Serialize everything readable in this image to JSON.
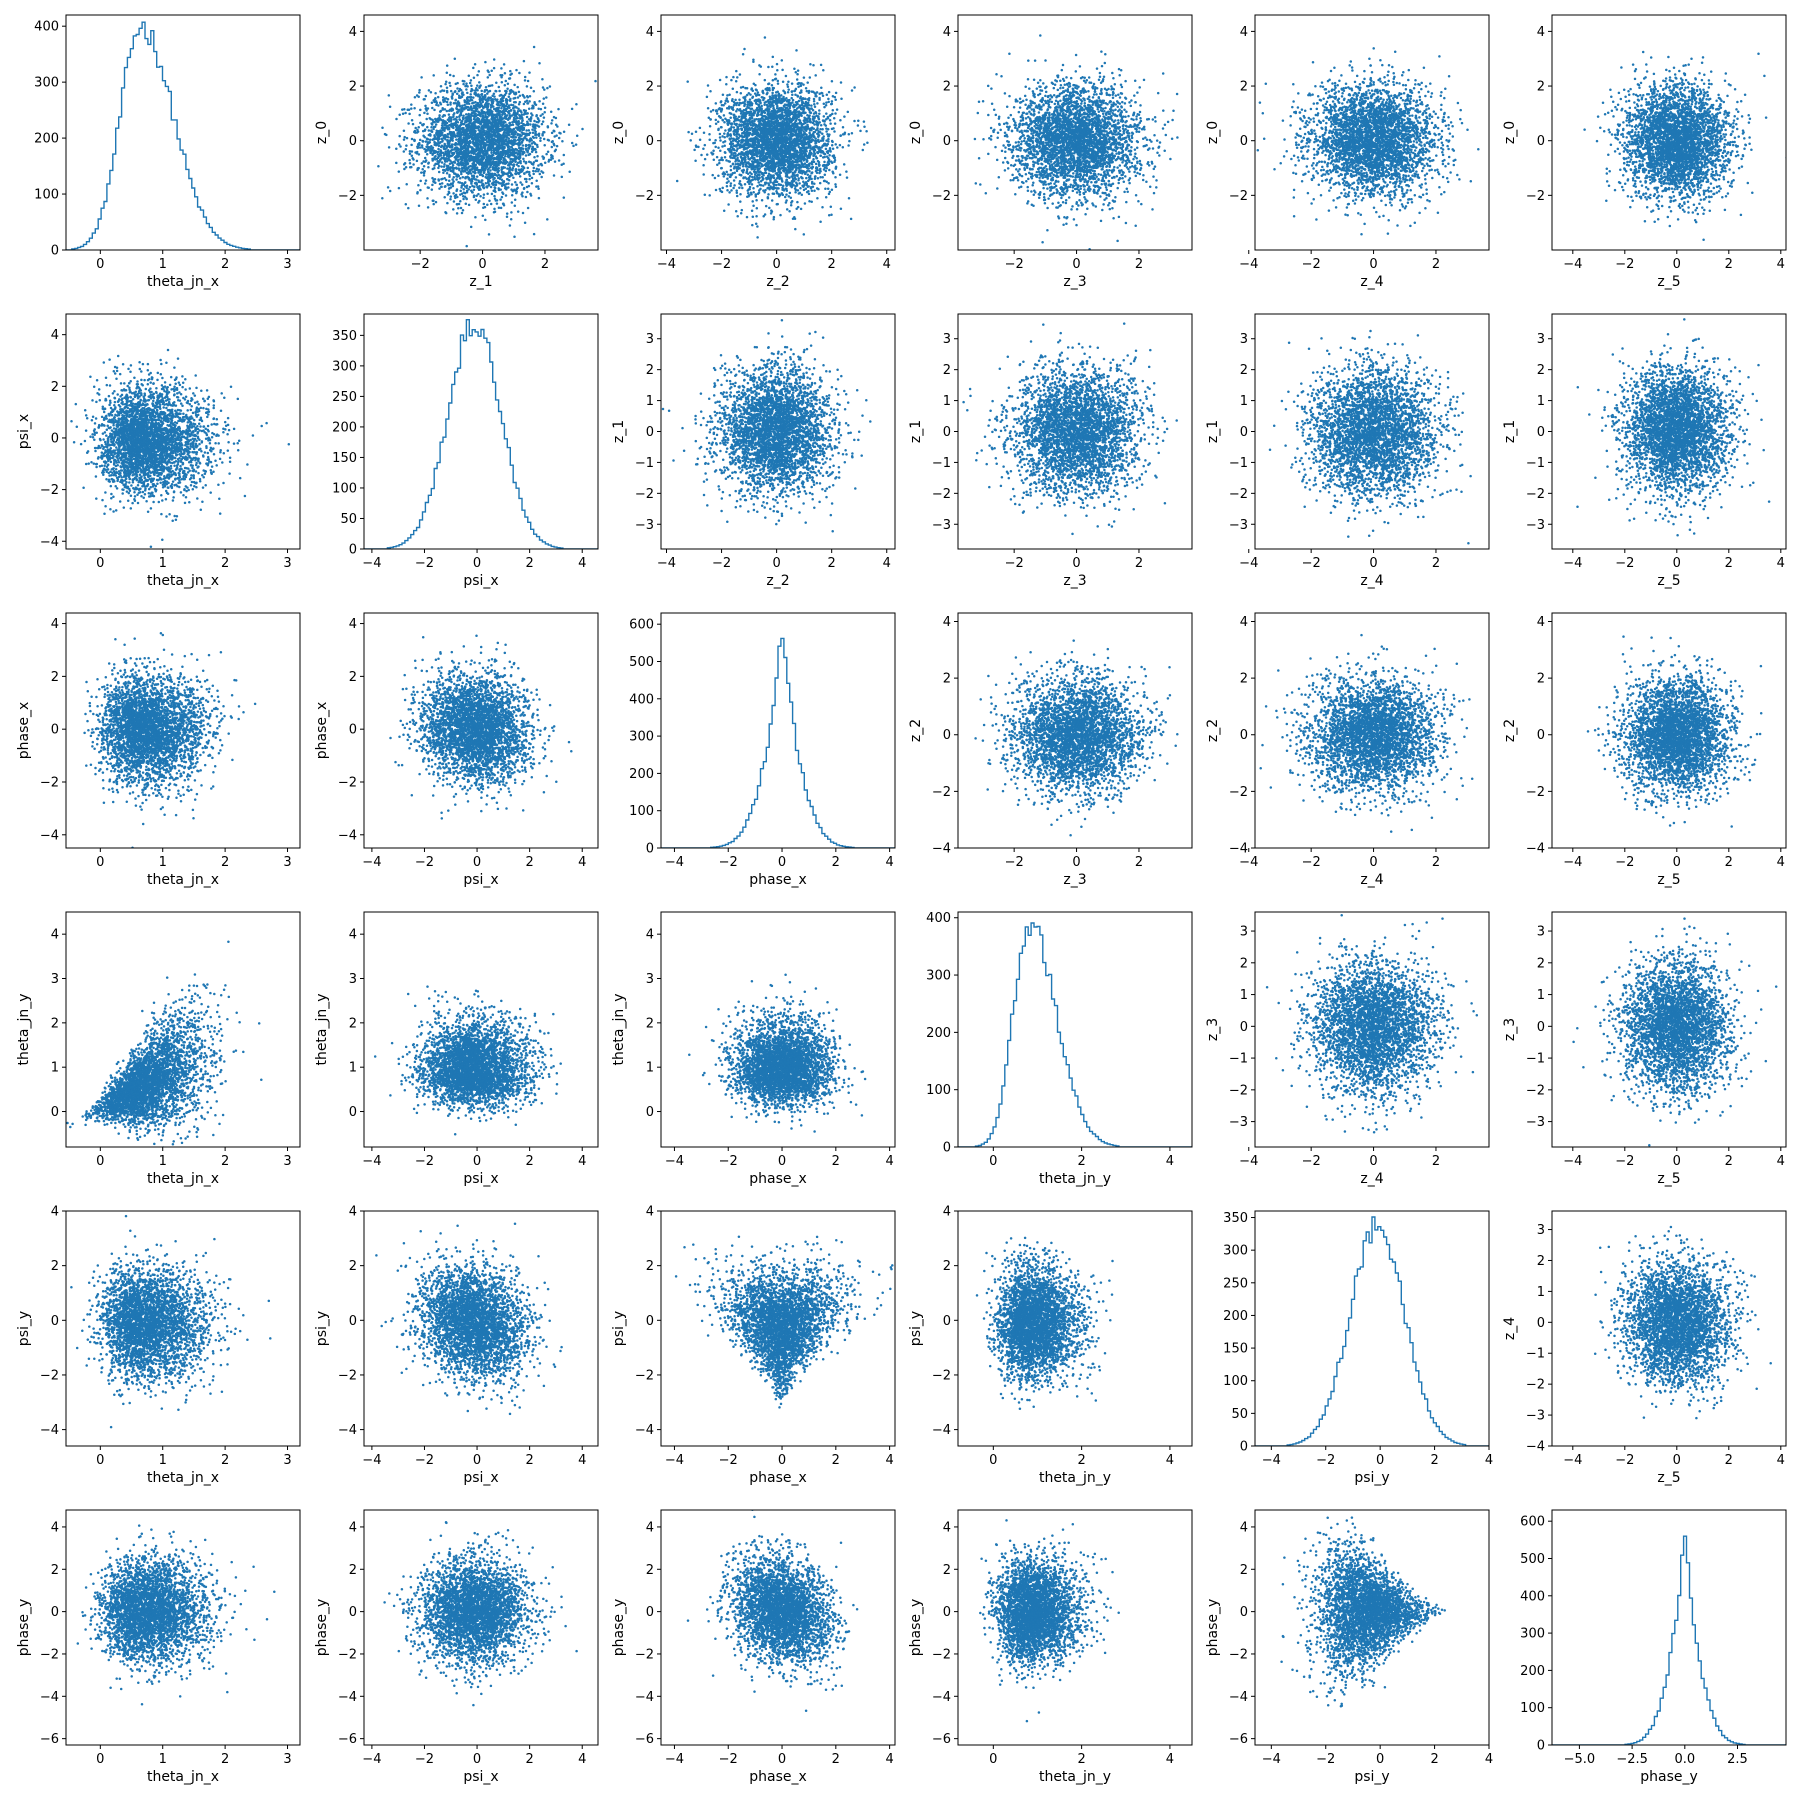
{
  "figure": {
    "background": "#ffffff",
    "series_color": "#1f77b4",
    "grid": false,
    "layout": "6x6 corner plot: histograms on the diagonal, scatter plots off-diagonal"
  },
  "chart_data": [
    {
      "type": "histogram",
      "row": 0,
      "col": 0,
      "xlabel": "theta_jn_x",
      "ylabel": "",
      "xlim": [
        -0.55,
        3.2
      ],
      "ylim": [
        0,
        420
      ],
      "xticks": [
        0,
        1,
        2,
        3
      ],
      "yticks": [
        0,
        100,
        200,
        300,
        400
      ],
      "dist": {
        "kind": "skew",
        "mode": 0.65,
        "sl": 0.33,
        "sr": 0.52,
        "peak": 400
      }
    },
    {
      "type": "scatter",
      "row": 0,
      "col": 1,
      "xlabel": "z_1",
      "ylabel": "z_0",
      "xlim": [
        -3.8,
        3.7
      ],
      "ylim": [
        -4.0,
        4.6
      ],
      "xticks": [
        -2,
        0,
        2
      ],
      "yticks": [
        -2,
        0,
        2,
        4
      ],
      "cloud": {
        "shape": "gauss",
        "cx": 0,
        "cy": 0,
        "sx": 1,
        "sy": 1,
        "r": 0
      }
    },
    {
      "type": "scatter",
      "row": 0,
      "col": 2,
      "xlabel": "z_2",
      "ylabel": "z_0",
      "xlim": [
        -4.2,
        4.3
      ],
      "ylim": [
        -4.0,
        4.6
      ],
      "xticks": [
        -4,
        -2,
        0,
        2,
        4
      ],
      "yticks": [
        -2,
        0,
        2,
        4
      ],
      "cloud": {
        "shape": "gauss",
        "cx": 0,
        "cy": 0,
        "sx": 1,
        "sy": 1,
        "r": 0
      }
    },
    {
      "type": "scatter",
      "row": 0,
      "col": 3,
      "xlabel": "z_3",
      "ylabel": "z_0",
      "xlim": [
        -3.8,
        3.7
      ],
      "ylim": [
        -4.0,
        4.6
      ],
      "xticks": [
        -2,
        0,
        2
      ],
      "yticks": [
        -2,
        0,
        2,
        4
      ],
      "cloud": {
        "shape": "gauss",
        "cx": 0,
        "cy": 0,
        "sx": 1,
        "sy": 1,
        "r": 0
      }
    },
    {
      "type": "scatter",
      "row": 0,
      "col": 4,
      "xlabel": "z_4",
      "ylabel": "z_0",
      "xlim": [
        -3.8,
        3.7
      ],
      "ylim": [
        -4.0,
        4.6
      ],
      "xticks": [
        -4,
        -2,
        0,
        2
      ],
      "yticks": [
        -2,
        0,
        2,
        4
      ],
      "cloud": {
        "shape": "gauss",
        "cx": 0,
        "cy": 0,
        "sx": 1,
        "sy": 1,
        "r": 0
      }
    },
    {
      "type": "scatter",
      "row": 0,
      "col": 5,
      "xlabel": "z_5",
      "ylabel": "z_0",
      "xlim": [
        -4.8,
        4.2
      ],
      "ylim": [
        -4.0,
        4.6
      ],
      "xticks": [
        -4,
        -2,
        0,
        2,
        4
      ],
      "yticks": [
        -2,
        0,
        2,
        4
      ],
      "cloud": {
        "shape": "gauss",
        "cx": 0,
        "cy": 0,
        "sx": 1,
        "sy": 1,
        "r": 0
      }
    },
    {
      "type": "scatter",
      "row": 1,
      "col": 0,
      "xlabel": "theta_jn_x",
      "ylabel": "psi_x",
      "xlim": [
        -0.55,
        3.2
      ],
      "ylim": [
        -4.3,
        4.8
      ],
      "xticks": [
        0,
        1,
        2,
        3
      ],
      "yticks": [
        -4,
        -2,
        0,
        2,
        4
      ],
      "cloud": {
        "shape": "skewx",
        "cx": 0.65,
        "cy": -0.1,
        "sx": 0.45,
        "sy": 1,
        "r": 0
      }
    },
    {
      "type": "histogram",
      "row": 1,
      "col": 1,
      "xlabel": "psi_x",
      "ylabel": "",
      "xlim": [
        -4.3,
        4.6
      ],
      "ylim": [
        0,
        385
      ],
      "xticks": [
        -4,
        -2,
        0,
        2,
        4
      ],
      "yticks": [
        0,
        50,
        100,
        150,
        200,
        250,
        300,
        350
      ],
      "dist": {
        "kind": "normal",
        "mode": -0.1,
        "sl": 1,
        "sr": 1,
        "peak": 370
      }
    },
    {
      "type": "scatter",
      "row": 1,
      "col": 2,
      "xlabel": "z_2",
      "ylabel": "z_1",
      "xlim": [
        -4.2,
        4.3
      ],
      "ylim": [
        -3.8,
        3.8
      ],
      "xticks": [
        -4,
        -2,
        0,
        2,
        4
      ],
      "yticks": [
        -3,
        -2,
        -1,
        0,
        1,
        2,
        3
      ],
      "cloud": {
        "shape": "gauss",
        "cx": 0,
        "cy": 0,
        "sx": 1,
        "sy": 1,
        "r": 0
      }
    },
    {
      "type": "scatter",
      "row": 1,
      "col": 3,
      "xlabel": "z_3",
      "ylabel": "z_1",
      "xlim": [
        -3.8,
        3.7
      ],
      "ylim": [
        -3.8,
        3.8
      ],
      "xticks": [
        -2,
        0,
        2
      ],
      "yticks": [
        -3,
        -2,
        -1,
        0,
        1,
        2,
        3
      ],
      "cloud": {
        "shape": "gauss",
        "cx": 0,
        "cy": 0,
        "sx": 1,
        "sy": 1,
        "r": 0
      }
    },
    {
      "type": "scatter",
      "row": 1,
      "col": 4,
      "xlabel": "z_4",
      "ylabel": "z_1",
      "xlim": [
        -3.8,
        3.7
      ],
      "ylim": [
        -3.8,
        3.8
      ],
      "xticks": [
        -4,
        -2,
        0,
        2
      ],
      "yticks": [
        -3,
        -2,
        -1,
        0,
        1,
        2,
        3
      ],
      "cloud": {
        "shape": "gauss",
        "cx": 0,
        "cy": 0,
        "sx": 1,
        "sy": 1,
        "r": 0
      }
    },
    {
      "type": "scatter",
      "row": 1,
      "col": 5,
      "xlabel": "z_5",
      "ylabel": "z_1",
      "xlim": [
        -4.8,
        4.2
      ],
      "ylim": [
        -3.8,
        3.8
      ],
      "xticks": [
        -4,
        -2,
        0,
        2,
        4
      ],
      "yticks": [
        -3,
        -2,
        -1,
        0,
        1,
        2,
        3
      ],
      "cloud": {
        "shape": "gauss",
        "cx": 0,
        "cy": 0,
        "sx": 1,
        "sy": 1,
        "r": 0
      }
    },
    {
      "type": "scatter",
      "row": 2,
      "col": 0,
      "xlabel": "theta_jn_x",
      "ylabel": "phase_x",
      "xlim": [
        -0.55,
        3.2
      ],
      "ylim": [
        -4.5,
        4.4
      ],
      "xticks": [
        0,
        1,
        2,
        3
      ],
      "yticks": [
        -4,
        -2,
        0,
        2,
        4
      ],
      "cloud": {
        "shape": "skewx",
        "cx": 0.65,
        "cy": 0,
        "sx": 0.45,
        "sy": 1,
        "r": 0
      }
    },
    {
      "type": "scatter",
      "row": 2,
      "col": 1,
      "xlabel": "psi_x",
      "ylabel": "phase_x",
      "xlim": [
        -4.3,
        4.6
      ],
      "ylim": [
        -4.5,
        4.4
      ],
      "xticks": [
        -4,
        -2,
        0,
        2,
        4
      ],
      "yticks": [
        -4,
        -2,
        0,
        2,
        4
      ],
      "cloud": {
        "shape": "gauss",
        "cx": -0.1,
        "cy": 0,
        "sx": 1,
        "sy": 1,
        "r": -0.1
      }
    },
    {
      "type": "histogram",
      "row": 2,
      "col": 2,
      "xlabel": "phase_x",
      "ylabel": "",
      "xlim": [
        -4.5,
        4.2
      ],
      "ylim": [
        0,
        630
      ],
      "xticks": [
        -4,
        -2,
        0,
        2,
        4
      ],
      "yticks": [
        0,
        100,
        200,
        300,
        400,
        500,
        600
      ],
      "dist": {
        "kind": "laplace",
        "mode": 0,
        "sl": 0.7,
        "sr": 0.7,
        "peak": 600
      }
    },
    {
      "type": "scatter",
      "row": 2,
      "col": 3,
      "xlabel": "z_3",
      "ylabel": "z_2",
      "xlim": [
        -3.8,
        3.7
      ],
      "ylim": [
        -4.0,
        4.3
      ],
      "xticks": [
        -2,
        0,
        2
      ],
      "yticks": [
        -4,
        -2,
        0,
        2,
        4
      ],
      "cloud": {
        "shape": "gauss",
        "cx": 0,
        "cy": 0,
        "sx": 1,
        "sy": 1,
        "r": 0
      }
    },
    {
      "type": "scatter",
      "row": 2,
      "col": 4,
      "xlabel": "z_4",
      "ylabel": "z_2",
      "xlim": [
        -3.8,
        3.7
      ],
      "ylim": [
        -4.0,
        4.3
      ],
      "xticks": [
        -4,
        -2,
        0,
        2
      ],
      "yticks": [
        -4,
        -2,
        0,
        2,
        4
      ],
      "cloud": {
        "shape": "gauss",
        "cx": 0,
        "cy": 0,
        "sx": 1,
        "sy": 1,
        "r": 0
      }
    },
    {
      "type": "scatter",
      "row": 2,
      "col": 5,
      "xlabel": "z_5",
      "ylabel": "z_2",
      "xlim": [
        -4.8,
        4.2
      ],
      "ylim": [
        -4.0,
        4.3
      ],
      "xticks": [
        -4,
        -2,
        0,
        2,
        4
      ],
      "yticks": [
        -4,
        -2,
        0,
        2,
        4
      ],
      "cloud": {
        "shape": "gauss",
        "cx": 0,
        "cy": 0,
        "sx": 1,
        "sy": 1,
        "r": 0
      }
    },
    {
      "type": "scatter",
      "row": 3,
      "col": 0,
      "xlabel": "theta_jn_x",
      "ylabel": "theta_jn_y",
      "xlim": [
        -0.55,
        3.2
      ],
      "ylim": [
        -0.8,
        4.5
      ],
      "xticks": [
        0,
        1,
        2,
        3
      ],
      "yticks": [
        0,
        1,
        2,
        3,
        4
      ],
      "cloud": {
        "shape": "cone",
        "cx": 0.65,
        "cy": 0.85,
        "sx": 0.45,
        "sy": 0.5,
        "r": 0.7
      }
    },
    {
      "type": "scatter",
      "row": 3,
      "col": 1,
      "xlabel": "psi_x",
      "ylabel": "theta_jn_y",
      "xlim": [
        -4.3,
        4.6
      ],
      "ylim": [
        -0.8,
        4.5
      ],
      "xticks": [
        -4,
        -2,
        0,
        2,
        4
      ],
      "yticks": [
        0,
        1,
        2,
        3,
        4
      ],
      "cloud": {
        "shape": "skewy",
        "cx": -0.1,
        "cy": 0.85,
        "sx": 1,
        "sy": 0.5,
        "r": 0
      }
    },
    {
      "type": "scatter",
      "row": 3,
      "col": 2,
      "xlabel": "phase_x",
      "ylabel": "theta_jn_y",
      "xlim": [
        -4.5,
        4.2
      ],
      "ylim": [
        -0.8,
        4.5
      ],
      "xticks": [
        -4,
        -2,
        0,
        2,
        4
      ],
      "yticks": [
        0,
        1,
        2,
        3,
        4
      ],
      "cloud": {
        "shape": "skewy",
        "cx": 0,
        "cy": 0.85,
        "sx": 0.9,
        "sy": 0.5,
        "r": 0
      }
    },
    {
      "type": "histogram",
      "row": 3,
      "col": 3,
      "xlabel": "theta_jn_y",
      "ylabel": "",
      "xlim": [
        -0.8,
        4.5
      ],
      "ylim": [
        0,
        410
      ],
      "xticks": [
        0,
        2,
        4
      ],
      "yticks": [
        0,
        100,
        200,
        300,
        400
      ],
      "dist": {
        "kind": "skew",
        "mode": 0.8,
        "sl": 0.35,
        "sr": 0.62,
        "peak": 390
      }
    },
    {
      "type": "scatter",
      "row": 3,
      "col": 4,
      "xlabel": "z_4",
      "ylabel": "z_3",
      "xlim": [
        -3.8,
        3.7
      ],
      "ylim": [
        -3.8,
        3.6
      ],
      "xticks": [
        -4,
        -2,
        0,
        2
      ],
      "yticks": [
        -3,
        -2,
        -1,
        0,
        1,
        2,
        3
      ],
      "cloud": {
        "shape": "gauss",
        "cx": 0,
        "cy": 0,
        "sx": 1,
        "sy": 1,
        "r": 0
      }
    },
    {
      "type": "scatter",
      "row": 3,
      "col": 5,
      "xlabel": "z_5",
      "ylabel": "z_3",
      "xlim": [
        -4.8,
        4.2
      ],
      "ylim": [
        -3.8,
        3.6
      ],
      "xticks": [
        -4,
        -2,
        0,
        2,
        4
      ],
      "yticks": [
        -3,
        -2,
        -1,
        0,
        1,
        2,
        3
      ],
      "cloud": {
        "shape": "gauss",
        "cx": 0,
        "cy": 0,
        "sx": 1,
        "sy": 1,
        "r": 0
      }
    },
    {
      "type": "scatter",
      "row": 4,
      "col": 0,
      "xlabel": "theta_jn_x",
      "ylabel": "psi_y",
      "xlim": [
        -0.55,
        3.2
      ],
      "ylim": [
        -4.6,
        4.0
      ],
      "xticks": [
        0,
        1,
        2,
        3
      ],
      "yticks": [
        -4,
        -2,
        0,
        2,
        4
      ],
      "cloud": {
        "shape": "skewx",
        "cx": 0.65,
        "cy": -0.1,
        "sx": 0.45,
        "sy": 1,
        "r": 0
      }
    },
    {
      "type": "scatter",
      "row": 4,
      "col": 1,
      "xlabel": "psi_x",
      "ylabel": "psi_y",
      "xlim": [
        -4.3,
        4.6
      ],
      "ylim": [
        -4.6,
        4.0
      ],
      "xticks": [
        -4,
        -2,
        0,
        2,
        4
      ],
      "yticks": [
        -4,
        -2,
        0,
        2,
        4
      ],
      "cloud": {
        "shape": "gauss",
        "cx": -0.1,
        "cy": -0.1,
        "sx": 1,
        "sy": 1,
        "r": -0.15
      }
    },
    {
      "type": "scatter",
      "row": 4,
      "col": 2,
      "xlabel": "phase_x",
      "ylabel": "psi_y",
      "xlim": [
        -4.5,
        4.2
      ],
      "ylim": [
        -4.6,
        4.0
      ],
      "xticks": [
        -4,
        -2,
        0,
        2,
        4
      ],
      "yticks": [
        -4,
        -2,
        0,
        2,
        4
      ],
      "cloud": {
        "shape": "funnel",
        "cx": 0,
        "cy": -0.1,
        "sx": 0.9,
        "sy": 1,
        "r": 0
      }
    },
    {
      "type": "scatter",
      "row": 4,
      "col": 3,
      "xlabel": "theta_jn_y",
      "ylabel": "psi_y",
      "xlim": [
        -0.8,
        4.5
      ],
      "ylim": [
        -4.6,
        4.0
      ],
      "xticks": [
        0,
        2,
        4
      ],
      "yticks": [
        -4,
        -2,
        0,
        2,
        4
      ],
      "cloud": {
        "shape": "skewx",
        "cx": 0.8,
        "cy": -0.1,
        "sx": 0.5,
        "sy": 1,
        "r": 0
      }
    },
    {
      "type": "histogram",
      "row": 4,
      "col": 4,
      "xlabel": "psi_y",
      "ylabel": "",
      "xlim": [
        -4.6,
        4.0
      ],
      "ylim": [
        0,
        360
      ],
      "xticks": [
        -4,
        -2,
        0,
        2,
        4
      ],
      "yticks": [
        0,
        50,
        100,
        150,
        200,
        250,
        300,
        350
      ],
      "dist": {
        "kind": "normal",
        "mode": -0.1,
        "sl": 1,
        "sr": 1,
        "peak": 340
      }
    },
    {
      "type": "scatter",
      "row": 4,
      "col": 5,
      "xlabel": "z_5",
      "ylabel": "z_4",
      "xlim": [
        -4.8,
        4.2
      ],
      "ylim": [
        -4.0,
        3.6
      ],
      "xticks": [
        -4,
        -2,
        0,
        2,
        4
      ],
      "yticks": [
        -4,
        -3,
        -2,
        -1,
        0,
        1,
        2,
        3
      ],
      "cloud": {
        "shape": "gauss",
        "cx": 0,
        "cy": 0,
        "sx": 1,
        "sy": 1,
        "r": 0
      }
    },
    {
      "type": "scatter",
      "row": 5,
      "col": 0,
      "xlabel": "theta_jn_x",
      "ylabel": "phase_y",
      "xlim": [
        -0.55,
        3.2
      ],
      "ylim": [
        -6.3,
        4.8
      ],
      "xticks": [
        0,
        1,
        2,
        3
      ],
      "yticks": [
        -6,
        -4,
        -2,
        0,
        2,
        4
      ],
      "cloud": {
        "shape": "skewx",
        "cx": 0.65,
        "cy": 0,
        "sx": 0.45,
        "sy": 1.2,
        "r": 0
      }
    },
    {
      "type": "scatter",
      "row": 5,
      "col": 1,
      "xlabel": "psi_x",
      "ylabel": "phase_y",
      "xlim": [
        -4.3,
        4.6
      ],
      "ylim": [
        -6.3,
        4.8
      ],
      "xticks": [
        -4,
        -2,
        0,
        2,
        4
      ],
      "yticks": [
        -6,
        -4,
        -2,
        0,
        2,
        4
      ],
      "cloud": {
        "shape": "gauss",
        "cx": -0.1,
        "cy": 0,
        "sx": 1,
        "sy": 1.2,
        "r": 0
      }
    },
    {
      "type": "scatter",
      "row": 5,
      "col": 2,
      "xlabel": "phase_x",
      "ylabel": "phase_y",
      "xlim": [
        -4.5,
        4.2
      ],
      "ylim": [
        -6.3,
        4.8
      ],
      "xticks": [
        -4,
        -2,
        0,
        2,
        4
      ],
      "yticks": [
        -6,
        -4,
        -2,
        0,
        2,
        4
      ],
      "cloud": {
        "shape": "gauss",
        "cx": 0,
        "cy": 0,
        "sx": 0.9,
        "sy": 1.2,
        "r": -0.2
      }
    },
    {
      "type": "scatter",
      "row": 5,
      "col": 3,
      "xlabel": "theta_jn_y",
      "ylabel": "phase_y",
      "xlim": [
        -0.8,
        4.5
      ],
      "ylim": [
        -6.3,
        4.8
      ],
      "xticks": [
        0,
        2,
        4
      ],
      "yticks": [
        -6,
        -4,
        -2,
        0,
        2,
        4
      ],
      "cloud": {
        "shape": "skewx",
        "cx": 0.8,
        "cy": 0,
        "sx": 0.5,
        "sy": 1.2,
        "r": 0
      }
    },
    {
      "type": "scatter",
      "row": 5,
      "col": 4,
      "xlabel": "psi_y",
      "ylabel": "phase_y",
      "xlim": [
        -4.6,
        4.0
      ],
      "ylim": [
        -6.3,
        4.8
      ],
      "xticks": [
        -4,
        -2,
        0,
        2,
        4
      ],
      "yticks": [
        -6,
        -4,
        -2,
        0,
        2,
        4
      ],
      "cloud": {
        "shape": "wedge",
        "cx": -0.5,
        "cy": 0,
        "sx": 0.9,
        "sy": 1.2,
        "r": 0
      }
    },
    {
      "type": "histogram",
      "row": 5,
      "col": 5,
      "xlabel": "phase_y",
      "ylabel": "",
      "xlim": [
        -6.3,
        4.8
      ],
      "ylim": [
        0,
        630
      ],
      "xticks": [
        -5.0,
        -2.5,
        0.0,
        2.5
      ],
      "ytickfmt": "0",
      "xtickfmt": "1",
      "yticks": [
        0,
        100,
        200,
        300,
        400,
        500,
        600
      ],
      "dist": {
        "kind": "laplace",
        "mode": 0,
        "sl": 0.75,
        "sr": 0.75,
        "peak": 600
      }
    }
  ]
}
